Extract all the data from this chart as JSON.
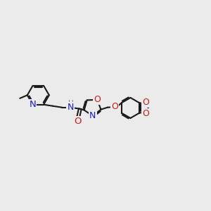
{
  "bg_color": "#ebebeb",
  "bond_color": "#1a1a1a",
  "bond_width": 1.5,
  "atom_colors": {
    "N": "#1a1acc",
    "O": "#cc1a1a",
    "C": "#1a1a1a",
    "H": "#5588aa"
  },
  "font_size": 8.5
}
